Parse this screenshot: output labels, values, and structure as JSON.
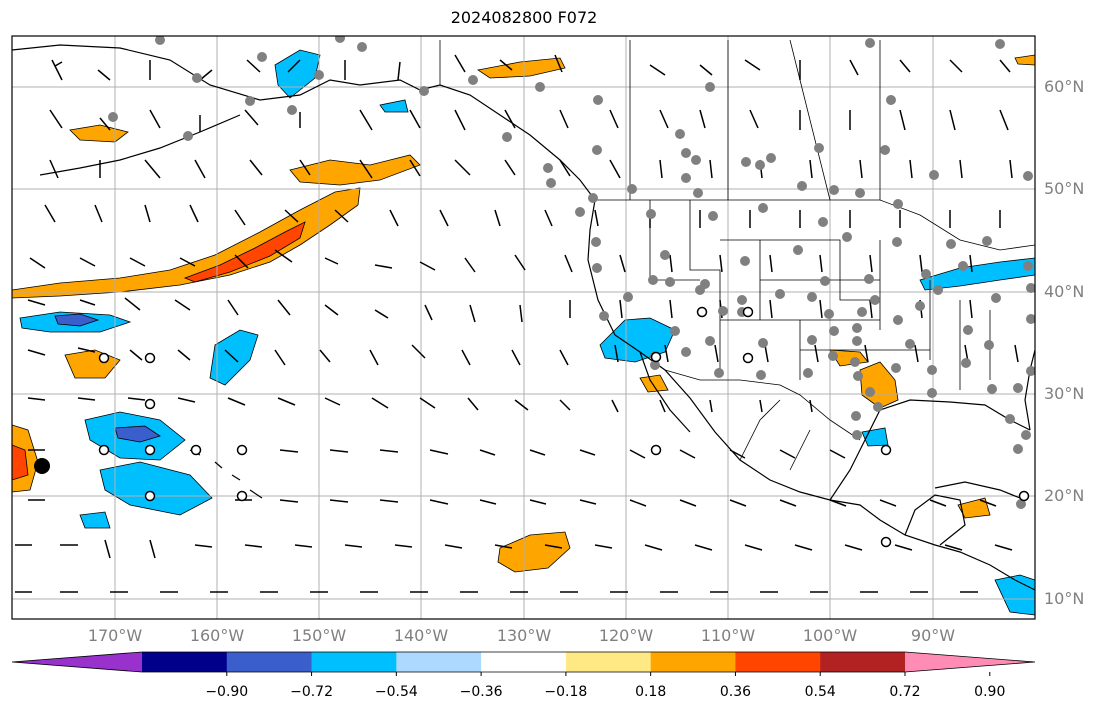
{
  "title": "2024082800 F072",
  "map": {
    "lat_labels": [
      "60°N",
      "50°N",
      "40°N",
      "30°N",
      "20°N",
      "10°N"
    ],
    "lon_labels": [
      "170°W",
      "160°W",
      "150°W",
      "140°W",
      "130°W",
      "120°W",
      "110°W",
      "100°W",
      "90°W"
    ]
  },
  "colorbar": {
    "colors": [
      "#9932cc",
      "#00008b",
      "#3a5fcd",
      "#00bfff",
      "#add8ff",
      "#ffffff",
      "#ffe985",
      "#ffa500",
      "#ff4500",
      "#b22222",
      "#ff8cb4"
    ],
    "ticks": [
      "−0.90",
      "−0.72",
      "−0.54",
      "−0.36",
      "−0.18",
      "0.18",
      "0.36",
      "0.54",
      "0.72",
      "0.90"
    ]
  }
}
